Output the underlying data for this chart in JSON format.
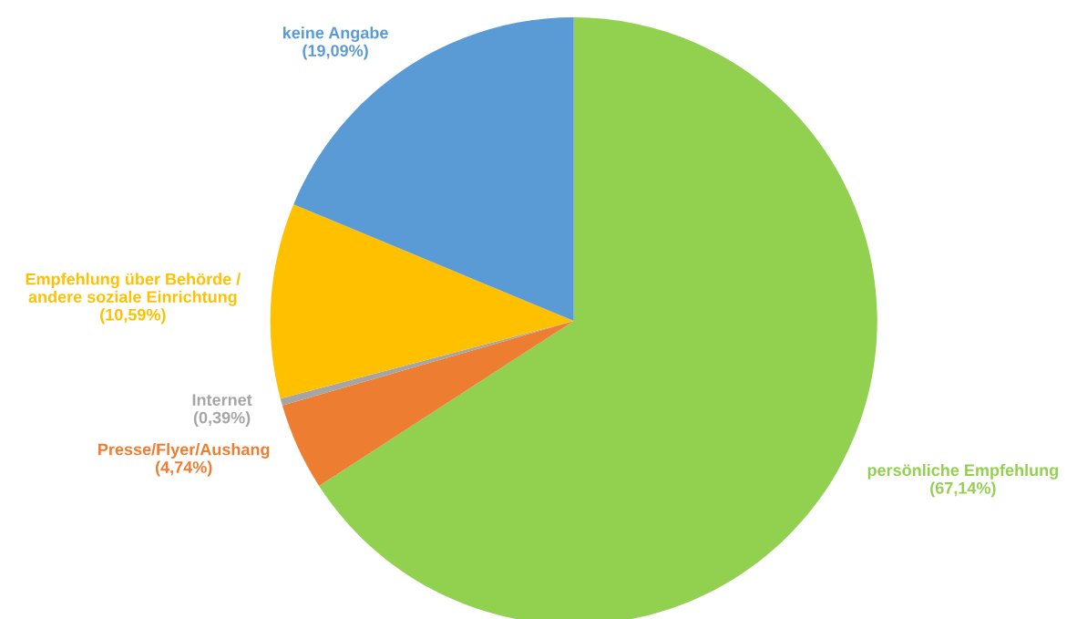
{
  "chart_data": {
    "type": "pie",
    "categories": [
      "persönliche Empfehlung",
      "Presse/Flyer/Aushang",
      "Internet",
      "Empfehlung über Behörde /\nandere soziale Einrichtung",
      "keine Angabe"
    ],
    "values": [
      67.14,
      4.74,
      0.39,
      10.59,
      19.09
    ],
    "value_labels": [
      "(67,14%)",
      "(4,74%)",
      "(0,39%)",
      "(10,59%)",
      "(19,09%)"
    ],
    "colors": [
      "#92d050",
      "#ed7d31",
      "#a5a5a5",
      "#ffc000",
      "#5b9bd5"
    ],
    "legend": false
  }
}
